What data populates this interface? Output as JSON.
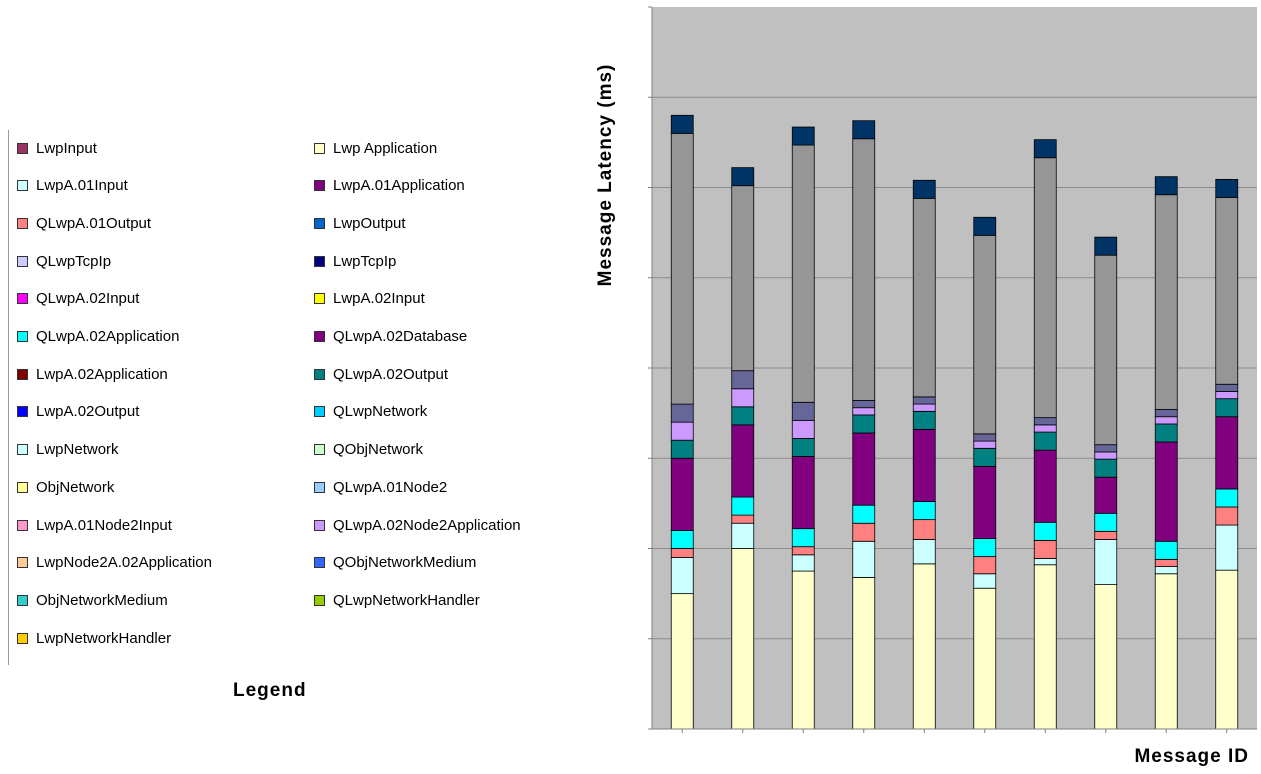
{
  "legend": {
    "title": "Legend",
    "items": [
      {
        "label": "LwpInput",
        "color": "#993366"
      },
      {
        "label": "Lwp Application",
        "color": "#ffffcc"
      },
      {
        "label": "LwpA.01Input",
        "color": "#ccffff"
      },
      {
        "label": "LwpA.01Application",
        "color": "#800080"
      },
      {
        "label": "QLwpA.01Output",
        "color": "#ff8080"
      },
      {
        "label": "LwpOutput",
        "color": "#0066cc"
      },
      {
        "label": "QLwpTcpIp",
        "color": "#ccccff"
      },
      {
        "label": "LwpTcpIp",
        "color": "#000080"
      },
      {
        "label": "QLwpA.02Input",
        "color": "#ff00ff"
      },
      {
        "label": "LwpA.02Input",
        "color": "#ffff00"
      },
      {
        "label": "QLwpA.02Application",
        "color": "#00ffff"
      },
      {
        "label": "QLwpA.02Database",
        "color": "#800080"
      },
      {
        "label": "LwpA.02Application",
        "color": "#800000"
      },
      {
        "label": "QLwpA.02Output",
        "color": "#008080"
      },
      {
        "label": "LwpA.02Output",
        "color": "#0000ff"
      },
      {
        "label": "QLwpNetwork",
        "color": "#00ccff"
      },
      {
        "label": "LwpNetwork",
        "color": "#ccffff"
      },
      {
        "label": "QObjNetwork",
        "color": "#ccffcc"
      },
      {
        "label": "ObjNetwork",
        "color": "#ffff99"
      },
      {
        "label": "QLwpA.01Node2",
        "color": "#99ccff"
      },
      {
        "label": "LwpA.01Node2Input",
        "color": "#ff99cc"
      },
      {
        "label": "QLwpA.02Node2Application",
        "color": "#cc99ff"
      },
      {
        "label": "LwpNode2A.02Application",
        "color": "#ffcc99"
      },
      {
        "label": "QObjNetworkMedium",
        "color": "#3366ff"
      },
      {
        "label": "ObjNetworkMedium",
        "color": "#33cccc"
      },
      {
        "label": "QLwpNetworkHandler",
        "color": "#99cc00"
      },
      {
        "label": "LwpNetworkHandler",
        "color": "#ffcc00"
      }
    ]
  },
  "chart_data": {
    "type": "bar",
    "stacked": true,
    "xlabel": "Message ID",
    "ylabel": "Message Latency (ms)",
    "ylim": [
      0,
      8
    ],
    "grid": true,
    "categories": [
      "",
      "",
      "",
      "",
      "",
      "",
      "",
      "",
      "",
      ""
    ],
    "series": [
      {
        "color": "#ffffcc",
        "values": [
          1.5,
          2.0,
          1.75,
          1.68,
          1.83,
          1.56,
          1.82,
          1.6,
          1.72,
          1.76
        ]
      },
      {
        "color": "#ccffff",
        "values": [
          0.4,
          0.28,
          0.18,
          0.4,
          0.27,
          0.16,
          0.07,
          0.5,
          0.08,
          0.5
        ]
      },
      {
        "color": "#ff8080",
        "values": [
          0.1,
          0.09,
          0.09,
          0.2,
          0.22,
          0.19,
          0.2,
          0.09,
          0.08,
          0.2
        ]
      },
      {
        "color": "#00ffff",
        "values": [
          0.2,
          0.2,
          0.2,
          0.2,
          0.2,
          0.2,
          0.2,
          0.2,
          0.2,
          0.2
        ]
      },
      {
        "color": "#800080",
        "values": [
          0.8,
          0.8,
          0.8,
          0.8,
          0.8,
          0.8,
          0.8,
          0.4,
          1.1,
          0.8
        ]
      },
      {
        "color": "#008080",
        "values": [
          0.2,
          0.2,
          0.2,
          0.2,
          0.2,
          0.2,
          0.2,
          0.2,
          0.2,
          0.2
        ]
      },
      {
        "color": "#cc99ff",
        "values": [
          0.2,
          0.2,
          0.2,
          0.08,
          0.08,
          0.08,
          0.08,
          0.08,
          0.08,
          0.08
        ]
      },
      {
        "color": "#666699",
        "values": [
          0.2,
          0.2,
          0.2,
          0.08,
          0.08,
          0.08,
          0.08,
          0.08,
          0.08,
          0.08
        ]
      },
      {
        "color": "#969696",
        "values": [
          3.0,
          2.05,
          2.85,
          2.9,
          2.2,
          2.2,
          2.88,
          2.1,
          2.38,
          2.07
        ]
      },
      {
        "color": "#003366",
        "values": [
          0.2,
          0.2,
          0.2,
          0.2,
          0.2,
          0.2,
          0.2,
          0.2,
          0.2,
          0.2
        ]
      }
    ]
  }
}
